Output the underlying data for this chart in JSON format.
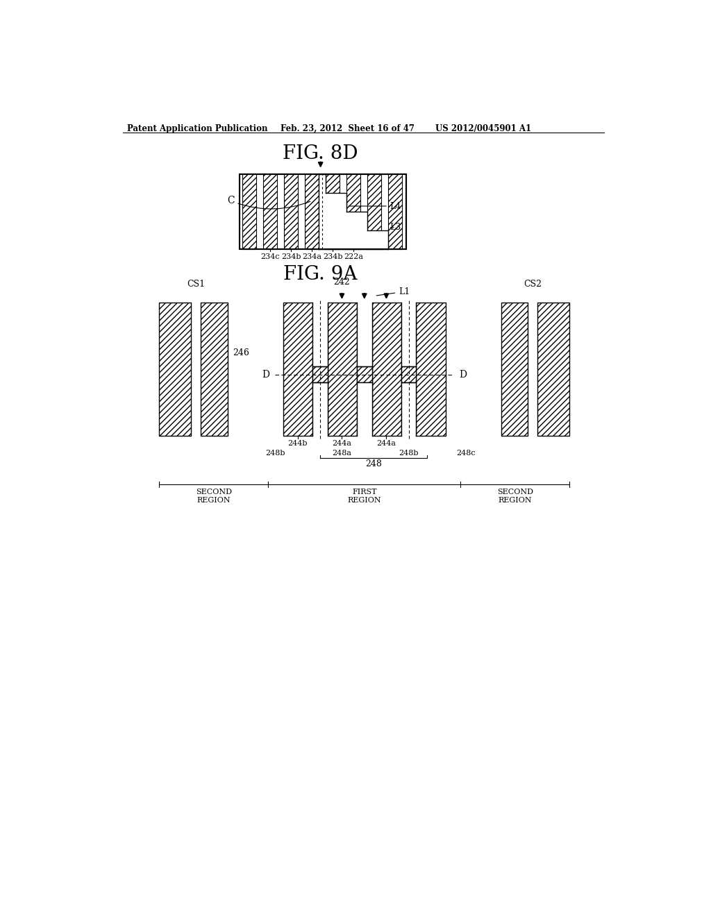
{
  "bg_color": "#ffffff",
  "header_left": "Patent Application Publication",
  "header_mid": "Feb. 23, 2012  Sheet 16 of 47",
  "header_right": "US 2012/0045901 A1",
  "fig8d_title": "FIG. 8D",
  "fig9a_title": "FIG. 9A",
  "line_color": "#000000"
}
